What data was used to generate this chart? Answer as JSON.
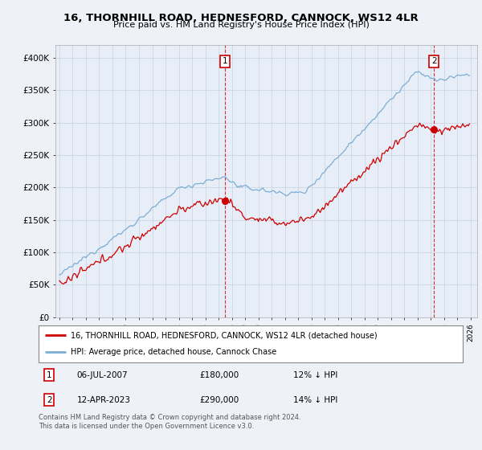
{
  "title": "16, THORNHILL ROAD, HEDNESFORD, CANNOCK, WS12 4LR",
  "subtitle": "Price paid vs. HM Land Registry's House Price Index (HPI)",
  "ylim": [
    0,
    420000
  ],
  "yticks": [
    0,
    50000,
    100000,
    150000,
    200000,
    250000,
    300000,
    350000,
    400000
  ],
  "ytick_labels": [
    "£0",
    "£50K",
    "£100K",
    "£150K",
    "£200K",
    "£250K",
    "£300K",
    "£350K",
    "£400K"
  ],
  "hpi_color": "#7bafd4",
  "price_color": "#cc0000",
  "marker1_date": "06-JUL-2007",
  "marker1_price_str": "£180,000",
  "marker1_pct": "12% ↓ HPI",
  "marker2_date": "12-APR-2023",
  "marker2_price_str": "£290,000",
  "marker2_pct": "14% ↓ HPI",
  "legend_line1": "16, THORNHILL ROAD, HEDNESFORD, CANNOCK, WS12 4LR (detached house)",
  "legend_line2": "HPI: Average price, detached house, Cannock Chase",
  "footnote": "Contains HM Land Registry data © Crown copyright and database right 2024.\nThis data is licensed under the Open Government Licence v3.0.",
  "background_color": "#eef2f8",
  "plot_bg_color": "#e8eef8",
  "grid_color": "#c8d0dc"
}
